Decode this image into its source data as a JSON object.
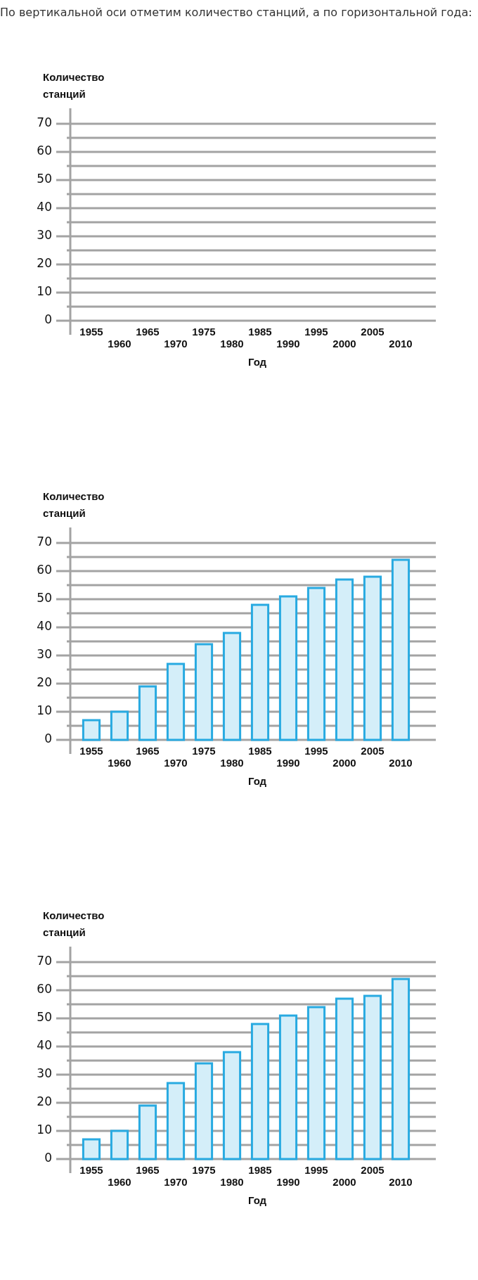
{
  "chart_data": [
    {
      "type": "bar",
      "title": "По вертикальной оси отметим количество станций, а по горизонтальной года:",
      "xlabel": "Год",
      "ylabel": "Количество станций",
      "categories": [
        "1955",
        "1960",
        "1965",
        "1970",
        "1975",
        "1980",
        "1985",
        "1990",
        "1995",
        "2000",
        "2005",
        "2010"
      ],
      "values": [
        null,
        null,
        null,
        null,
        null,
        null,
        null,
        null,
        null,
        null,
        null,
        null
      ],
      "ylim": [
        0,
        70
      ],
      "yticks": [
        0,
        {
          "value": 5,
          "label": null
        },
        10,
        {
          "value": 15,
          "label": null
        },
        20,
        {
          "value": 25,
          "label": null
        },
        30,
        {
          "value": 35,
          "label": null
        },
        40,
        {
          "value": 45,
          "label": null
        },
        50,
        {
          "value": 55,
          "label": null
        },
        60,
        {
          "value": 65,
          "label": null
        },
        70
      ],
      "grid": "y"
    },
    {
      "type": "bar",
      "xlabel": "Год",
      "ylabel": "Количество станций",
      "categories": [
        "1955",
        "1960",
        "1965",
        "1970",
        "1975",
        "1980",
        "1985",
        "1990",
        "1995",
        "2000",
        "2005",
        "2010"
      ],
      "values": [
        7,
        10,
        19,
        27,
        34,
        38,
        48,
        51,
        54,
        57,
        58,
        64
      ],
      "color": "#d4eef9",
      "ylim": [
        0,
        70
      ],
      "yticks": [
        0,
        {
          "value": 5,
          "label": null
        },
        10,
        {
          "value": 15,
          "label": null
        },
        20,
        {
          "value": 25,
          "label": null
        },
        30,
        {
          "value": 35,
          "label": null
        },
        40,
        {
          "value": 45,
          "label": null
        },
        50,
        {
          "value": 55,
          "label": null
        },
        60,
        {
          "value": 65,
          "label": null
        },
        70
      ],
      "grid": "y"
    },
    {
      "type": "bar",
      "xlabel": "Год",
      "ylabel": "Количество станций",
      "categories": [
        "1955",
        "1960",
        "1965",
        "1970",
        "1975",
        "1980",
        "1985",
        "1990",
        "1995",
        "2000",
        "2005",
        "2010"
      ],
      "values": [
        7,
        10,
        19,
        27,
        34,
        38,
        48,
        51,
        54,
        57,
        58,
        64
      ],
      "color": "#d4eef9",
      "ylim": [
        0,
        70
      ],
      "yticks": [
        0,
        {
          "value": 5,
          "label": null
        },
        10,
        {
          "value": 15,
          "label": null
        },
        20,
        {
          "value": 25,
          "label": null
        },
        30,
        {
          "value": 35,
          "label": null
        },
        40,
        {
          "value": 45,
          "label": null
        },
        50,
        {
          "value": 55,
          "label": null
        },
        60,
        {
          "value": 65,
          "label": null
        },
        70
      ],
      "grid": "y"
    }
  ]
}
